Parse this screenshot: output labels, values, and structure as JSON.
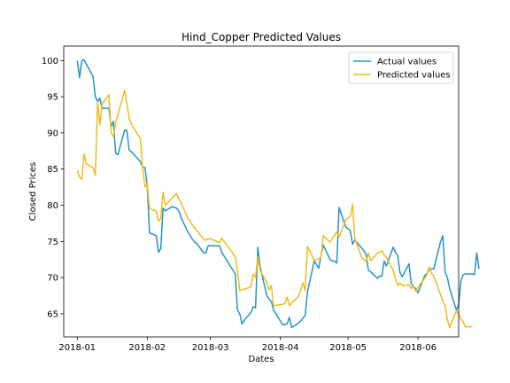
{
  "chart_data": {
    "type": "line",
    "title": "Hind_Copper Predicted Values",
    "xlabel": "Dates",
    "ylabel": "Closed Prices",
    "xlim": [
      "2017-12-26",
      "2018-06-19"
    ],
    "ylim": [
      61.8,
      102.0
    ],
    "x_ticks": [
      "2018-01-01",
      "2018-02-01",
      "2018-03-01",
      "2018-04-01",
      "2018-05-01",
      "2018-06-01"
    ],
    "x_tick_labels": [
      "2018-01",
      "2018-02",
      "2018-03",
      "2018-04",
      "2018-05",
      "2018-06"
    ],
    "y_ticks": [
      65,
      70,
      75,
      80,
      85,
      90,
      95,
      100
    ],
    "y_tick_labels": [
      "65",
      "70",
      "75",
      "80",
      "85",
      "90",
      "95",
      "100"
    ],
    "legend_position": "top-right",
    "grid": false,
    "series": [
      {
        "name": "Actual values",
        "color": "#2596be",
        "points": [
          [
            "2018-01-01",
            100.0
          ],
          [
            "2018-01-02",
            97.6
          ],
          [
            "2018-01-03",
            100.0
          ],
          [
            "2018-01-04",
            100.1
          ],
          [
            "2018-01-08",
            97.8
          ],
          [
            "2018-01-09",
            95.0
          ],
          [
            "2018-01-10",
            94.3
          ],
          [
            "2018-01-11",
            94.8
          ],
          [
            "2018-01-12",
            93.4
          ],
          [
            "2018-01-15",
            93.4
          ],
          [
            "2018-01-16",
            90.9
          ],
          [
            "2018-01-17",
            91.6
          ],
          [
            "2018-01-18",
            87.2
          ],
          [
            "2018-01-19",
            87.0
          ],
          [
            "2018-01-22",
            90.4
          ],
          [
            "2018-01-23",
            90.3
          ],
          [
            "2018-01-24",
            87.6
          ],
          [
            "2018-01-25",
            87.4
          ],
          [
            "2018-01-29",
            86.0
          ],
          [
            "2018-01-30",
            85.3
          ],
          [
            "2018-01-31",
            85.2
          ],
          [
            "2018-02-01",
            82.7
          ],
          [
            "2018-02-02",
            76.2
          ],
          [
            "2018-02-05",
            75.8
          ],
          [
            "2018-02-06",
            73.5
          ],
          [
            "2018-02-07",
            74.0
          ],
          [
            "2018-02-08",
            79.6
          ],
          [
            "2018-02-09",
            79.2
          ],
          [
            "2018-02-12",
            79.8
          ],
          [
            "2018-02-14",
            79.6
          ],
          [
            "2018-02-15",
            79.2
          ],
          [
            "2018-02-16",
            78.3
          ],
          [
            "2018-02-19",
            76.3
          ],
          [
            "2018-02-20",
            75.8
          ],
          [
            "2018-02-21",
            75.3
          ],
          [
            "2018-02-22",
            74.9
          ],
          [
            "2018-02-23",
            74.7
          ],
          [
            "2018-02-26",
            73.4
          ],
          [
            "2018-02-27",
            73.4
          ],
          [
            "2018-02-28",
            74.4
          ],
          [
            "2018-03-01",
            74.4
          ],
          [
            "2018-03-05",
            74.4
          ],
          [
            "2018-03-06",
            73.5
          ],
          [
            "2018-03-07",
            73.0
          ],
          [
            "2018-03-08",
            72.5
          ],
          [
            "2018-03-09",
            72.0
          ],
          [
            "2018-03-12",
            70.5
          ],
          [
            "2018-03-13",
            65.5
          ],
          [
            "2018-03-14",
            65.0
          ],
          [
            "2018-03-15",
            63.6
          ],
          [
            "2018-03-16",
            64.1
          ],
          [
            "2018-03-19",
            65.2
          ],
          [
            "2018-03-20",
            66.0
          ],
          [
            "2018-03-21",
            65.8
          ],
          [
            "2018-03-22",
            74.2
          ],
          [
            "2018-03-23",
            71.5
          ],
          [
            "2018-03-26",
            67.5
          ],
          [
            "2018-03-27",
            67.0
          ],
          [
            "2018-03-28",
            66.7
          ],
          [
            "2018-03-29",
            65.5
          ],
          [
            "2018-04-02",
            63.5
          ],
          [
            "2018-04-03",
            63.5
          ],
          [
            "2018-04-04",
            63.6
          ],
          [
            "2018-04-05",
            64.5
          ],
          [
            "2018-04-06",
            63.1
          ],
          [
            "2018-04-09",
            63.7
          ],
          [
            "2018-04-10",
            64.0
          ],
          [
            "2018-04-11",
            64.4
          ],
          [
            "2018-04-12",
            64.8
          ],
          [
            "2018-04-13",
            68.0
          ],
          [
            "2018-04-16",
            72.3
          ],
          [
            "2018-04-17",
            71.8
          ],
          [
            "2018-04-18",
            71.3
          ],
          [
            "2018-04-19",
            73.0
          ],
          [
            "2018-04-20",
            74.5
          ],
          [
            "2018-04-23",
            72.5
          ],
          [
            "2018-04-24",
            72.3
          ],
          [
            "2018-04-25",
            72.3
          ],
          [
            "2018-04-26",
            72.0
          ],
          [
            "2018-04-27",
            79.7
          ],
          [
            "2018-04-30",
            77.0
          ],
          [
            "2018-05-02",
            76.5
          ],
          [
            "2018-05-03",
            74.6
          ],
          [
            "2018-05-04",
            75.2
          ],
          [
            "2018-05-07",
            74.1
          ],
          [
            "2018-05-08",
            73.7
          ],
          [
            "2018-05-09",
            73.2
          ],
          [
            "2018-05-10",
            71.0
          ],
          [
            "2018-05-11",
            70.8
          ],
          [
            "2018-05-14",
            69.9
          ],
          [
            "2018-05-15",
            70.2
          ],
          [
            "2018-05-16",
            70.2
          ],
          [
            "2018-05-17",
            72.3
          ],
          [
            "2018-05-18",
            71.6
          ],
          [
            "2018-05-21",
            74.2
          ],
          [
            "2018-05-22",
            73.5
          ],
          [
            "2018-05-23",
            73.0
          ],
          [
            "2018-05-24",
            70.7
          ],
          [
            "2018-05-25",
            70.1
          ],
          [
            "2018-05-28",
            71.9
          ],
          [
            "2018-05-29",
            69.2
          ],
          [
            "2018-05-30",
            68.7
          ],
          [
            "2018-05-31",
            68.5
          ],
          [
            "2018-06-01",
            67.9
          ],
          [
            "2018-06-04",
            70.3
          ],
          [
            "2018-06-05",
            70.6
          ],
          [
            "2018-06-06",
            71.1
          ],
          [
            "2018-06-07",
            71.2
          ],
          [
            "2018-06-08",
            71.2
          ],
          [
            "2018-06-11",
            75.0
          ],
          [
            "2018-06-12",
            75.8
          ],
          [
            "2018-06-13",
            70.8
          ],
          [
            "2018-06-14",
            70.0
          ],
          [
            "2018-06-15",
            68.5
          ],
          [
            "2018-06-18",
            65.5
          ],
          [
            "2018-06-19",
            66.3
          ],
          [
            "2018-06-20",
            69.5
          ],
          [
            "2018-06-21",
            70.4
          ],
          [
            "2018-06-22",
            70.5
          ],
          [
            "2018-06-25",
            70.5
          ],
          [
            "2018-06-26",
            70.4
          ],
          [
            "2018-06-27",
            73.4
          ],
          [
            "2018-06-28",
            71.2
          ]
        ]
      },
      {
        "name": "Predicted values",
        "color": "#f0bb1c",
        "points": [
          [
            "2018-01-01",
            84.8
          ],
          [
            "2018-01-02",
            83.9
          ],
          [
            "2018-01-03",
            83.6
          ],
          [
            "2018-01-04",
            87.1
          ],
          [
            "2018-01-05",
            85.7
          ],
          [
            "2018-01-08",
            85.2
          ],
          [
            "2018-01-09",
            84.1
          ],
          [
            "2018-01-10",
            94.3
          ],
          [
            "2018-01-11",
            91.1
          ],
          [
            "2018-01-12",
            94.0
          ],
          [
            "2018-01-15",
            95.3
          ],
          [
            "2018-01-16",
            90.0
          ],
          [
            "2018-01-17",
            89.5
          ],
          [
            "2018-01-18",
            91.4
          ],
          [
            "2018-01-19",
            92.5
          ],
          [
            "2018-01-22",
            95.9
          ],
          [
            "2018-01-23",
            94.0
          ],
          [
            "2018-01-24",
            92.0
          ],
          [
            "2018-01-25",
            91.2
          ],
          [
            "2018-01-29",
            89.2
          ],
          [
            "2018-01-30",
            85.0
          ],
          [
            "2018-01-31",
            82.5
          ],
          [
            "2018-02-01",
            83.0
          ],
          [
            "2018-02-02",
            79.5
          ],
          [
            "2018-02-05",
            79.2
          ],
          [
            "2018-02-06",
            77.8
          ],
          [
            "2018-02-07",
            78.2
          ],
          [
            "2018-02-08",
            81.8
          ],
          [
            "2018-02-09",
            80.0
          ],
          [
            "2018-02-12",
            81.0
          ],
          [
            "2018-02-14",
            81.6
          ],
          [
            "2018-02-15",
            80.9
          ],
          [
            "2018-02-16",
            80.3
          ],
          [
            "2018-02-19",
            78.2
          ],
          [
            "2018-02-20",
            77.8
          ],
          [
            "2018-02-21",
            77.3
          ],
          [
            "2018-02-22",
            76.9
          ],
          [
            "2018-02-23",
            76.5
          ],
          [
            "2018-02-26",
            75.3
          ],
          [
            "2018-02-27",
            75.2
          ],
          [
            "2018-02-28",
            75.3
          ],
          [
            "2018-03-01",
            75.4
          ],
          [
            "2018-03-05",
            74.8
          ],
          [
            "2018-03-06",
            75.5
          ],
          [
            "2018-03-07",
            75.0
          ],
          [
            "2018-03-08",
            74.6
          ],
          [
            "2018-03-09",
            74.2
          ],
          [
            "2018-03-12",
            72.9
          ],
          [
            "2018-03-13",
            70.9
          ],
          [
            "2018-03-14",
            68.2
          ],
          [
            "2018-03-15",
            68.3
          ],
          [
            "2018-03-16",
            68.4
          ],
          [
            "2018-03-19",
            68.7
          ],
          [
            "2018-03-20",
            70.5
          ],
          [
            "2018-03-21",
            70.0
          ],
          [
            "2018-03-22",
            72.9
          ],
          [
            "2018-03-23",
            71.0
          ],
          [
            "2018-03-26",
            69.3
          ],
          [
            "2018-03-27",
            68.3
          ],
          [
            "2018-03-28",
            68.9
          ],
          [
            "2018-03-29",
            66.1
          ],
          [
            "2018-04-02",
            66.3
          ],
          [
            "2018-04-03",
            66.4
          ],
          [
            "2018-04-04",
            67.3
          ],
          [
            "2018-04-05",
            66.1
          ],
          [
            "2018-04-06",
            66.5
          ],
          [
            "2018-04-09",
            67.4
          ],
          [
            "2018-04-10",
            68.3
          ],
          [
            "2018-04-11",
            69.3
          ],
          [
            "2018-04-12",
            68.2
          ],
          [
            "2018-04-13",
            74.3
          ],
          [
            "2018-04-16",
            72.4
          ],
          [
            "2018-04-17",
            72.5
          ],
          [
            "2018-04-18",
            72.6
          ],
          [
            "2018-04-19",
            72.7
          ],
          [
            "2018-04-20",
            75.8
          ],
          [
            "2018-04-23",
            74.9
          ],
          [
            "2018-04-24",
            75.4
          ],
          [
            "2018-04-25",
            75.8
          ],
          [
            "2018-04-26",
            76.3
          ],
          [
            "2018-04-27",
            75.6
          ],
          [
            "2018-04-30",
            78.0
          ],
          [
            "2018-05-02",
            78.5
          ],
          [
            "2018-05-03",
            80.2
          ],
          [
            "2018-05-04",
            75.4
          ],
          [
            "2018-05-07",
            72.8
          ],
          [
            "2018-05-08",
            72.5
          ],
          [
            "2018-05-09",
            72.2
          ],
          [
            "2018-05-10",
            73.4
          ],
          [
            "2018-05-11",
            72.3
          ],
          [
            "2018-05-14",
            73.4
          ],
          [
            "2018-05-15",
            73.5
          ],
          [
            "2018-05-16",
            73.7
          ],
          [
            "2018-05-17",
            73.1
          ],
          [
            "2018-05-18",
            72.8
          ],
          [
            "2018-05-21",
            71.0
          ],
          [
            "2018-05-22",
            69.8
          ],
          [
            "2018-05-23",
            68.9
          ],
          [
            "2018-05-24",
            69.3
          ],
          [
            "2018-05-25",
            68.9
          ],
          [
            "2018-05-28",
            69.0
          ],
          [
            "2018-05-29",
            68.5
          ],
          [
            "2018-05-30",
            68.8
          ],
          [
            "2018-05-31",
            68.1
          ],
          [
            "2018-06-01",
            68.7
          ],
          [
            "2018-06-04",
            69.9
          ],
          [
            "2018-06-05",
            70.5
          ],
          [
            "2018-06-06",
            71.5
          ],
          [
            "2018-06-07",
            70.6
          ],
          [
            "2018-06-08",
            70.2
          ],
          [
            "2018-06-11",
            67.6
          ],
          [
            "2018-06-12",
            66.8
          ],
          [
            "2018-06-13",
            66.1
          ],
          [
            "2018-06-14",
            64.2
          ],
          [
            "2018-06-15",
            63.1
          ],
          [
            "2018-06-18",
            65.4
          ],
          [
            "2018-06-19",
            65.0
          ],
          [
            "2018-06-20",
            64.3
          ],
          [
            "2018-06-21",
            63.9
          ],
          [
            "2018-06-22",
            63.2
          ],
          [
            "2018-06-25",
            63.2
          ]
        ]
      }
    ]
  }
}
